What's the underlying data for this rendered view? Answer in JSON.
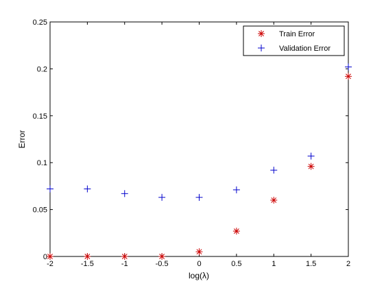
{
  "chart_data": {
    "type": "scatter",
    "title": "",
    "xlabel": "log(λ)",
    "ylabel": "Error",
    "xlim": [
      -2,
      2
    ],
    "ylim": [
      0,
      0.25
    ],
    "xticks": [
      -2,
      -1.5,
      -1,
      -0.5,
      0,
      0.5,
      1,
      1.5,
      2
    ],
    "xtick_labels": [
      "-2",
      "-1.5",
      "-1",
      "-0.5",
      "0",
      "0.5",
      "1",
      "1.5",
      "2"
    ],
    "yticks": [
      0,
      0.05,
      0.1,
      0.15,
      0.2,
      0.25
    ],
    "ytick_labels": [
      "0",
      "0.05",
      "0.1",
      "0.15",
      "0.2",
      "0.25"
    ],
    "grid": false,
    "legend_position": "top-right",
    "series": [
      {
        "name": "Train Error",
        "marker": "asterisk",
        "color": "#cc0000",
        "x": [
          -2,
          -1.5,
          -1,
          -0.5,
          0,
          0.5,
          1,
          1.5,
          2
        ],
        "y": [
          0.0,
          0.0,
          0.0,
          0.0,
          0.005,
          0.027,
          0.06,
          0.096,
          0.192
        ]
      },
      {
        "name": "Validation Error",
        "marker": "plus",
        "color": "#0000cc",
        "x": [
          -2,
          -1.5,
          -1,
          -0.5,
          0,
          0.5,
          1,
          1.5,
          2
        ],
        "y": [
          0.072,
          0.072,
          0.067,
          0.063,
          0.063,
          0.071,
          0.092,
          0.107,
          0.202
        ]
      }
    ]
  }
}
